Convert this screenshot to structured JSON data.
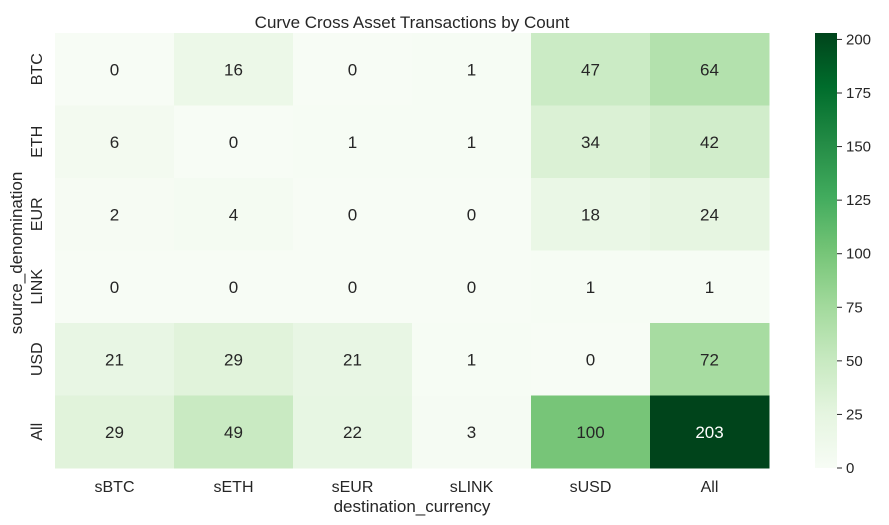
{
  "chart_data": {
    "type": "heatmap",
    "title": "Curve Cross Asset Transactions by Count",
    "xlabel": "destination_currency",
    "ylabel": "source_denomination",
    "x_categories": [
      "sBTC",
      "sETH",
      "sEUR",
      "sLINK",
      "sUSD",
      "All"
    ],
    "y_categories": [
      "BTC",
      "ETH",
      "EUR",
      "LINK",
      "USD",
      "All"
    ],
    "values": [
      [
        0,
        16,
        0,
        1,
        47,
        64
      ],
      [
        6,
        0,
        1,
        1,
        34,
        42
      ],
      [
        2,
        4,
        0,
        0,
        18,
        24
      ],
      [
        0,
        0,
        0,
        0,
        1,
        1
      ],
      [
        21,
        29,
        21,
        1,
        0,
        72
      ],
      [
        29,
        49,
        22,
        3,
        100,
        203
      ]
    ],
    "colorbar": {
      "min": 0,
      "max": 203,
      "ticks": [
        0,
        25,
        50,
        75,
        100,
        125,
        150,
        175,
        200
      ],
      "colormap": "Greens",
      "colors": [
        "#f7fcf5",
        "#e5f5e0",
        "#c7e9c0",
        "#a1d99b",
        "#74c476",
        "#41ab5d",
        "#238b45",
        "#006d2c",
        "#00441b"
      ]
    },
    "annotations": "cell values shown"
  }
}
